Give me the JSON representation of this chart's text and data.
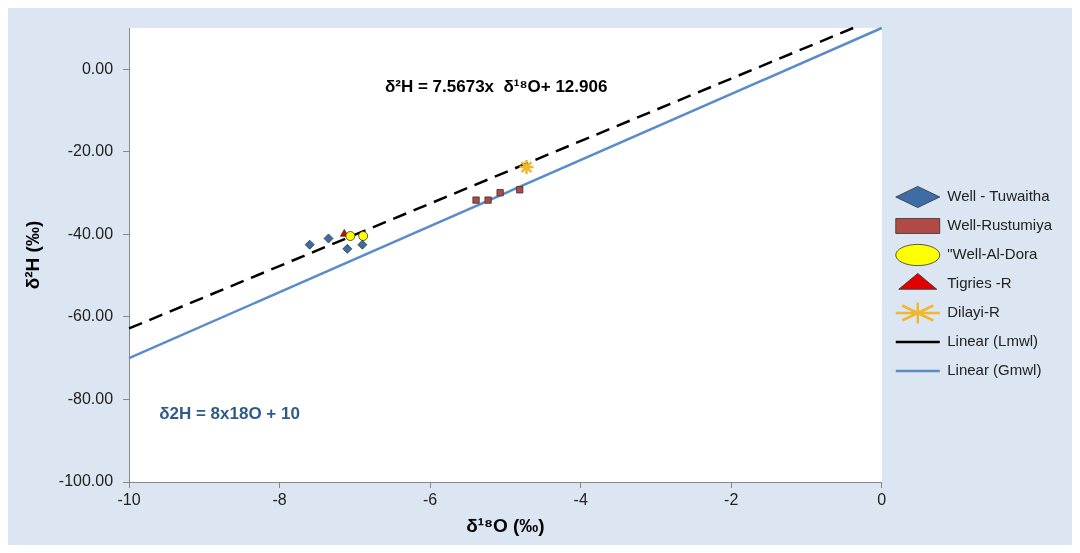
{
  "chart_data": {
    "type": "scatter",
    "xlabel": "δ¹⁸O (‰)",
    "ylabel": "δ²H (‰)",
    "xlim": [
      -10,
      0
    ],
    "xticks": [
      -10,
      -8,
      -6,
      -4,
      -2,
      0
    ],
    "ylim": [
      -100,
      10
    ],
    "yticks": [
      {
        "value": 0,
        "label": "0.00"
      },
      {
        "value": -20,
        "label": "-20.00"
      },
      {
        "value": -40,
        "label": "-40.00"
      },
      {
        "value": -60,
        "label": "-60.00"
      },
      {
        "value": -80,
        "label": "-80.00"
      },
      {
        "value": -100,
        "label": "-100.00"
      }
    ],
    "grid": false,
    "legend": "right",
    "annotations": [
      "δ²H = 7.5673x  δ¹⁸O+ 12.906",
      "δ2H = 8x18O + 10"
    ],
    "series": [
      {
        "name": "Well - Tuwaitha",
        "type": "scatter",
        "marker": "diamond",
        "color": "#3e6da6",
        "x": [
          -7.6,
          -7.35,
          -7.1,
          -6.9
        ],
        "values": [
          -42.5,
          -41,
          -43.5,
          -42.5
        ]
      },
      {
        "name": "Well-Rustumiya",
        "type": "scatter",
        "marker": "square",
        "color": "#b04a45",
        "x": [
          -5.39,
          -5.23,
          -5.07,
          -4.81
        ],
        "values": [
          -31.7,
          -31.7,
          -29.9,
          -29.2
        ]
      },
      {
        "name": "\"Well-Al-Dora",
        "type": "scatter",
        "marker": "circle",
        "color": "#ffff00",
        "x": [
          -7.06,
          -6.89
        ],
        "values": [
          -40.4,
          -40.4
        ]
      },
      {
        "name": "Tigries -R",
        "type": "scatter",
        "marker": "triangle",
        "color": "#e00000",
        "x": [
          -7.14
        ],
        "values": [
          -39.9
        ]
      },
      {
        "name": "Dilayi-R",
        "type": "scatter",
        "marker": "cross",
        "color": "#f0b830",
        "x": [
          -4.72
        ],
        "values": [
          -23.7
        ]
      },
      {
        "name": "Linear (Lmwl)",
        "type": "line",
        "marker": "none",
        "line_style": "dashed",
        "color": "#000000",
        "x": [
          -10,
          -0.38
        ],
        "values": [
          -62.8,
          10
        ]
      },
      {
        "name": "Linear (Gmwl)",
        "type": "line",
        "marker": "none",
        "line_style": "solid",
        "color": "#5b8cc8",
        "x": [
          -10,
          0
        ],
        "values": [
          -70,
          10
        ]
      }
    ]
  }
}
